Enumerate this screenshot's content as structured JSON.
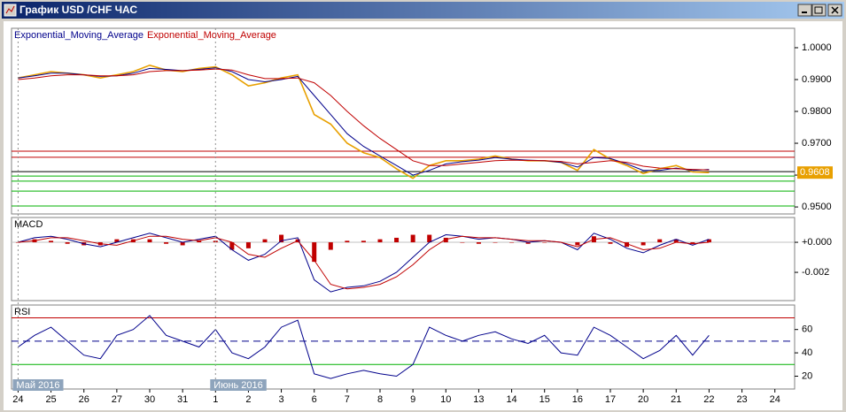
{
  "window_title": "График USD /CHF ЧАС",
  "chart_data": [
    {
      "type": "line",
      "x": [
        0,
        0.5,
        1,
        1.5,
        2,
        2.5,
        3,
        3.5,
        4,
        4.5,
        5,
        5.5,
        6,
        6.5,
        7,
        7.5,
        8,
        8.5,
        9,
        9.5,
        10,
        10.5,
        11,
        11.5,
        12,
        12.5,
        13,
        13.5,
        14,
        14.5,
        15,
        15.5,
        16,
        16.5,
        17,
        17.5,
        18,
        18.5,
        19,
        19.5,
        20,
        20.5,
        21
      ],
      "ylim": [
        0.9478,
        1.0061
      ],
      "yticks": [
        {
          "value": 1,
          "label": "1.0000"
        },
        {
          "value": 0.99,
          "label": "0.9900"
        },
        {
          "value": 0.98,
          "label": "0.9800"
        },
        {
          "value": 0.97,
          "label": "0.9700"
        },
        {
          "value": 0.96,
          "label": "0.9600"
        },
        {
          "value": 0.95,
          "label": "0.9500"
        }
      ],
      "series": [
        {
          "color": "#e8a000",
          "values": [
            0.9905,
            0.9915,
            0.9925,
            0.992,
            0.9915,
            0.9905,
            0.9915,
            0.9925,
            0.9945,
            0.993,
            0.9925,
            0.9935,
            0.994,
            0.9915,
            0.988,
            0.989,
            0.9905,
            0.9915,
            0.979,
            0.976,
            0.97,
            0.967,
            0.9655,
            0.962,
            0.959,
            0.963,
            0.9645,
            0.9645,
            0.965,
            0.966,
            0.965,
            0.9645,
            0.9645,
            0.964,
            0.9615,
            0.968,
            0.965,
            0.963,
            0.9605,
            0.962,
            0.963,
            0.961,
            0.9608
          ]
        },
        {
          "name": "Exponential_Moving_Average",
          "color": "#00008b",
          "values": [
            0.9905,
            0.9912,
            0.992,
            0.992,
            0.9915,
            0.991,
            0.9912,
            0.992,
            0.9935,
            0.9932,
            0.9928,
            0.9932,
            0.9937,
            0.9925,
            0.99,
            0.9893,
            0.99,
            0.991,
            0.985,
            0.979,
            0.973,
            0.969,
            0.966,
            0.963,
            0.96,
            0.9615,
            0.9635,
            0.9642,
            0.9647,
            0.9655,
            0.965,
            0.9647,
            0.9645,
            0.964,
            0.9625,
            0.9655,
            0.9652,
            0.9635,
            0.9615,
            0.9615,
            0.9622,
            0.9615,
            0.9618
          ]
        },
        {
          "name": "Exponential_Moving_Average",
          "color": "#c00000",
          "values": [
            0.99,
            0.9905,
            0.9912,
            0.9915,
            0.9915,
            0.9912,
            0.9912,
            0.9915,
            0.9925,
            0.9928,
            0.9928,
            0.993,
            0.9933,
            0.993,
            0.9915,
            0.9903,
            0.9903,
            0.9905,
            0.989,
            0.985,
            0.98,
            0.9755,
            0.9715,
            0.968,
            0.9645,
            0.963,
            0.963,
            0.9635,
            0.964,
            0.9645,
            0.9647,
            0.9646,
            0.9645,
            0.9643,
            0.9635,
            0.964,
            0.9645,
            0.964,
            0.9628,
            0.9622,
            0.962,
            0.9618,
            0.9616
          ]
        }
      ],
      "levels": [
        {
          "value": 0.9675,
          "color": "#c00000"
        },
        {
          "value": 0.9656,
          "color": "#c00000"
        },
        {
          "value": 0.9611,
          "color": "#000000"
        },
        {
          "value": 0.9597,
          "color": "#00b000"
        },
        {
          "value": 0.9581,
          "color": "#00b000"
        },
        {
          "value": 0.955,
          "color": "#00b000"
        },
        {
          "value": 0.9503,
          "color": "#00b000"
        }
      ],
      "current": 0.9608,
      "current_color": "#e8a000"
    },
    {
      "type": "line",
      "title": "MACD",
      "x": [
        0,
        0.5,
        1,
        1.5,
        2,
        2.5,
        3,
        3.5,
        4,
        4.5,
        5,
        5.5,
        6,
        6.5,
        7,
        7.5,
        8,
        8.5,
        9,
        9.5,
        10,
        10.5,
        11,
        11.5,
        12,
        12.5,
        13,
        13.5,
        14,
        14.5,
        15,
        15.5,
        16,
        16.5,
        17,
        17.5,
        18,
        18.5,
        19,
        19.5,
        20,
        20.5,
        21
      ],
      "ylim": [
        -0.00388,
        0.00165
      ],
      "yticks": [
        {
          "value": 0,
          "label": "+0.000"
        },
        {
          "value": -0.002,
          "label": "-0.002"
        }
      ],
      "series": [
        {
          "kind": "bar",
          "color": "#c00000",
          "values": [
            0,
            0.0002,
            0.0001,
            -0.0001,
            -0.0002,
            -0.0002,
            0.0002,
            0.0002,
            0.0002,
            -0.0001,
            -0.0002,
            0.0001,
            0.0001,
            -0.0005,
            -0.0004,
            0.0002,
            0.0005,
            0.0002,
            -0.0013,
            -0.0005,
            0.0001,
            0.0001,
            0.0002,
            0.0003,
            0.0005,
            0.0005,
            0.0003,
            0,
            -0.0001,
            0,
            0,
            -0.0001,
            0,
            0,
            -0.0002,
            0.0004,
            -0.0001,
            -0.0003,
            -0.0002,
            0.0002,
            0.0002,
            -0.0001,
            0.0002
          ]
        },
        {
          "color": "#00008b",
          "values": [
            0,
            0.0003,
            0.0004,
            0.0002,
            -0.0001,
            -0.0003,
            0,
            0.0003,
            0.0006,
            0.0003,
            0,
            0.0002,
            0.0004,
            -0.0005,
            -0.0012,
            -0.0008,
            0.0001,
            0.0003,
            -0.0025,
            -0.0033,
            -0.003,
            -0.0029,
            -0.0026,
            -0.002,
            -0.001,
            0,
            0.0005,
            0.0004,
            0.0002,
            0.0003,
            0.0002,
            0,
            0.0001,
            0,
            -0.0005,
            0.0006,
            0.0002,
            -0.0004,
            -0.0007,
            -0.0002,
            0.0002,
            -0.0002,
            0.0002
          ]
        },
        {
          "color": "#c00000",
          "values": [
            0,
            0.0001,
            0.0003,
            0.0003,
            0.0001,
            -0.0001,
            -0.0002,
            0.0001,
            0.0004,
            0.0004,
            0.0002,
            0.0001,
            0.0003,
            0,
            -0.0008,
            -0.001,
            -0.0004,
            0.0001,
            -0.0012,
            -0.0028,
            -0.0031,
            -0.003,
            -0.0028,
            -0.0023,
            -0.0015,
            -0.0005,
            0.0002,
            0.0004,
            0.0003,
            0.0003,
            0.0002,
            0.0001,
            0.0001,
            0,
            -0.0003,
            0.0002,
            0.0003,
            -0.0001,
            -0.0005,
            -0.0004,
            0,
            -0.0001,
            0
          ]
        }
      ],
      "levels": [
        {
          "value": 0,
          "color": "#c0c0c0"
        }
      ]
    },
    {
      "type": "line",
      "title": "RSI",
      "x": [
        0,
        0.5,
        1,
        1.5,
        2,
        2.5,
        3,
        3.5,
        4,
        4.5,
        5,
        5.5,
        6,
        6.5,
        7,
        7.5,
        8,
        8.5,
        9,
        9.5,
        10,
        10.5,
        11,
        11.5,
        12,
        12.5,
        13,
        13.5,
        14,
        14.5,
        15,
        15.5,
        16,
        16.5,
        17,
        17.5,
        18,
        18.5,
        19,
        19.5,
        20,
        20.5,
        21
      ],
      "ylim": [
        9,
        81
      ],
      "yticks": [
        60,
        40,
        20
      ],
      "series": [
        {
          "color": "#00008b",
          "values": [
            45,
            55,
            62,
            50,
            38,
            35,
            55,
            60,
            72,
            55,
            50,
            45,
            60,
            40,
            35,
            45,
            62,
            68,
            22,
            18,
            22,
            25,
            22,
            20,
            30,
            62,
            55,
            50,
            55,
            58,
            52,
            48,
            55,
            40,
            38,
            62,
            55,
            45,
            35,
            42,
            55,
            38,
            55
          ]
        }
      ],
      "levels": [
        {
          "value": 70,
          "color": "#c00000"
        },
        {
          "value": 50,
          "color": "#00008b",
          "dash": true
        },
        {
          "value": 30,
          "color": "#00b000"
        }
      ],
      "xlim": [
        -0.2,
        23.6
      ],
      "xticks": [
        {
          "value": 0,
          "label": "24"
        },
        {
          "value": 1,
          "label": "25"
        },
        {
          "value": 2,
          "label": "26"
        },
        {
          "value": 3,
          "label": "27"
        },
        {
          "value": 4,
          "label": "30"
        },
        {
          "value": 5,
          "label": "31"
        },
        {
          "value": 6,
          "label": "1"
        },
        {
          "value": 7,
          "label": "2"
        },
        {
          "value": 8,
          "label": "3"
        },
        {
          "value": 9,
          "label": "6"
        },
        {
          "value": 10,
          "label": "7"
        },
        {
          "value": 11,
          "label": "8"
        },
        {
          "value": 12,
          "label": "9"
        },
        {
          "value": 13,
          "label": "10"
        },
        {
          "value": 14,
          "label": "13"
        },
        {
          "value": 15,
          "label": "14"
        },
        {
          "value": 16,
          "label": "15"
        },
        {
          "value": 17,
          "label": "16"
        },
        {
          "value": 18,
          "label": "17"
        },
        {
          "value": 19,
          "label": "20"
        },
        {
          "value": 20,
          "label": "21"
        },
        {
          "value": 21,
          "label": "22"
        },
        {
          "value": 22,
          "label": "23"
        },
        {
          "value": 23,
          "label": "24"
        }
      ],
      "months": [
        {
          "value": 0,
          "label": "Май 2016"
        },
        {
          "value": 6,
          "label": "Июнь 2016"
        }
      ]
    }
  ]
}
